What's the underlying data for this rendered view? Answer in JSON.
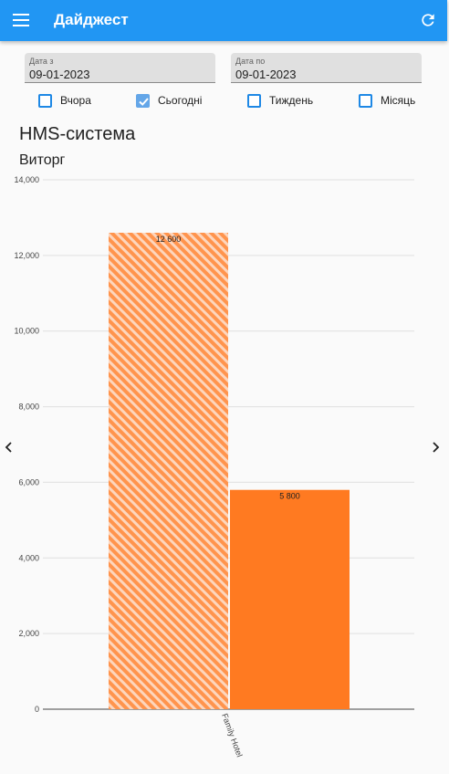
{
  "appbar": {
    "title": "Дайджест",
    "menu_icon": "menu-icon",
    "refresh_icon": "refresh-icon",
    "color": "#2196f3"
  },
  "filters": {
    "date_from": {
      "label": "Дата з",
      "value": "09-01-2023"
    },
    "date_to": {
      "label": "Дата по",
      "value": "09-01-2023"
    },
    "periods": [
      {
        "label": "Вчора",
        "checked": false
      },
      {
        "label": "Сьогодні",
        "checked": true
      },
      {
        "label": "Тиждень",
        "checked": false
      },
      {
        "label": "Місяць",
        "checked": false
      }
    ]
  },
  "section": {
    "title": "HMS-система",
    "subtitle": "Виторг"
  },
  "nav": {
    "prev_icon": "chevron-left-icon",
    "next_icon": "chevron-right-icon"
  },
  "chart_data": {
    "type": "bar",
    "categories": [
      "Family Hotel"
    ],
    "series": [
      {
        "values": [
          12600
        ],
        "label": "12 600",
        "color": "#ff7a21",
        "pattern": "hatched"
      },
      {
        "values": [
          5800
        ],
        "label": "5 800",
        "color": "#ff7a21",
        "pattern": "solid"
      }
    ],
    "ylim": [
      0,
      14000
    ],
    "yticks": [
      "0",
      "2,000",
      "4,000",
      "6,000",
      "8,000",
      "10,000",
      "12,000",
      "14,000"
    ],
    "ytick_values": [
      0,
      2000,
      4000,
      6000,
      8000,
      10000,
      12000,
      14000
    ],
    "grid": true
  }
}
